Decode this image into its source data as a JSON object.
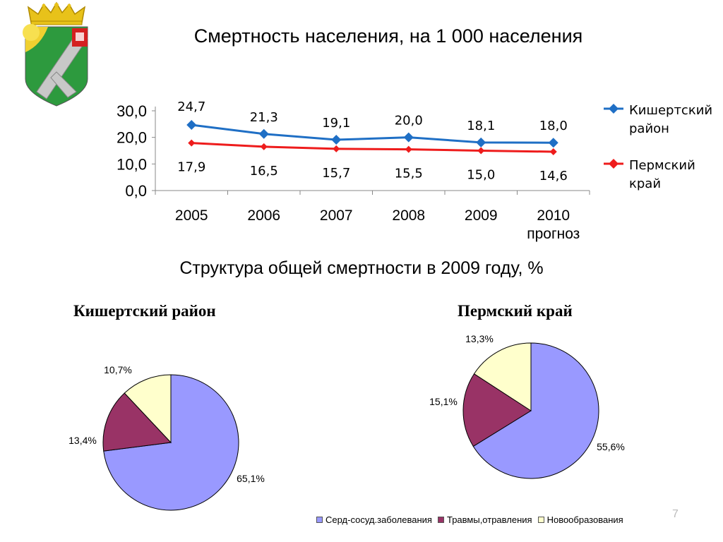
{
  "slide": {
    "title": "Смертность населения, на 1 000 населения",
    "subtitle": "Структура общей смертности в 2009 году, %",
    "page_number": "7"
  },
  "emblem": {
    "icon": "coat-of-arms-icon"
  },
  "chart_data": [
    {
      "type": "line",
      "categories": [
        "2005",
        "2006",
        "2007",
        "2008",
        "2009",
        "2010"
      ],
      "category_sublabels": [
        "",
        "",
        "",
        "",
        "",
        "прогноз"
      ],
      "series": [
        {
          "name": "Кишертский район",
          "values": [
            24.7,
            21.3,
            19.1,
            20.0,
            18.1,
            18.0
          ],
          "labels": [
            "24,7",
            "21,3",
            "19,1",
            "20,0",
            "18,1",
            "18,0"
          ],
          "color": "#1f6fc5"
        },
        {
          "name": "Пермский край",
          "values": [
            17.9,
            16.5,
            15.7,
            15.5,
            15.0,
            14.6
          ],
          "labels": [
            "17,9",
            "16,5",
            "15,7",
            "15,5",
            "15,0",
            "14,6"
          ],
          "color": "#ee1c1c"
        }
      ],
      "y_ticks": [
        "0,0",
        "10,0",
        "20,0",
        "30,0"
      ],
      "ylim": [
        0,
        30
      ],
      "legend": "right"
    },
    {
      "type": "pie",
      "title": "Кишертский район",
      "slices": [
        {
          "category": "Серд-сосуд.заболевания",
          "value": 65.1,
          "label": "65,1%"
        },
        {
          "category": "Травмы,отравления",
          "value": 13.4,
          "label": "13,4%"
        },
        {
          "category": "Новообразования",
          "value": 10.7,
          "label": "10,7%"
        }
      ]
    },
    {
      "type": "pie",
      "title": "Пермский край",
      "slices": [
        {
          "category": "Серд-сосуд.заболевания",
          "value": 55.6,
          "label": "55,6%"
        },
        {
          "category": "Травмы,отравления",
          "value": 15.1,
          "label": "15,1%"
        },
        {
          "category": "Новообразования",
          "value": 13.3,
          "label": "13,3%"
        }
      ]
    }
  ],
  "pie_legend": [
    {
      "label": "Серд-сосуд.заболевания",
      "color": "#9999ff"
    },
    {
      "label": "Травмы,отравления",
      "color": "#993366"
    },
    {
      "label": "Новообразования",
      "color": "#ffffcc"
    }
  ]
}
